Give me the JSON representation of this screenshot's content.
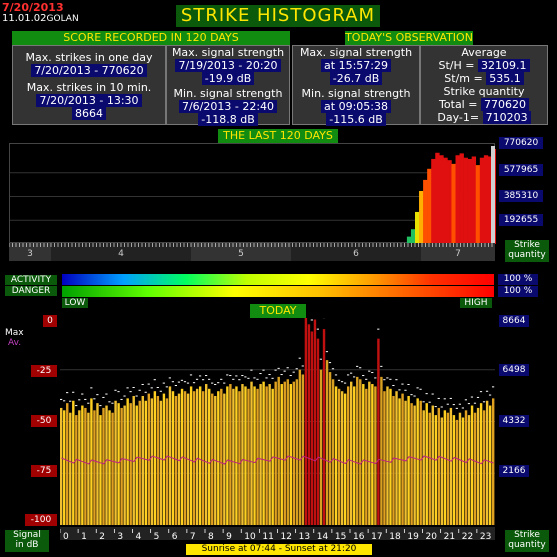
{
  "header": {
    "date": "7/20/2013",
    "time": "11.01.02",
    "location": "GOLAN",
    "title": "STRIKE HISTOGRAM"
  },
  "score": {
    "banner": "SCORE RECORDED IN 120 DAYS",
    "max_one_day_label": "Max. strikes in one day",
    "max_one_day_value": "7/20/2013 - 770620",
    "max_10min_label": "Max. strikes in 10 min.",
    "max_10min_date": "7/20/2013 - 13:30",
    "max_10min_value": "8664",
    "max_signal_label": "Max. signal strength",
    "max_signal_date": "7/19/2013 - 20:20",
    "max_signal_value": "-19.9 dB",
    "min_signal_label": "Min. signal strength",
    "min_signal_date": "7/6/2013 - 22:40",
    "min_signal_value": "-118.8 dB"
  },
  "today": {
    "banner": "TODAY'S OBSERVATION",
    "max_signal_label": "Max. signal strength",
    "max_signal_time": "at 15:57:29",
    "max_signal_value": "-26.7 dB",
    "min_signal_label": "Min. signal strength",
    "min_signal_time": "at 09:05:38",
    "min_signal_value": "-115.6 dB",
    "average_label": "Average",
    "sth_label": "St/H =",
    "sth_value": "32109.1",
    "stm_label": "St/m =",
    "stm_value": "535.1",
    "quantity_label": "Strike quantity",
    "total_label": "Total =",
    "total_value": "770620",
    "day1_label": "Day-1=",
    "day1_value": "710203"
  },
  "last120": {
    "banner": "THE LAST 120 DAYS",
    "y_labels": [
      "770620",
      "577965",
      "385310",
      "192655"
    ],
    "months": [
      "3",
      "4",
      "5",
      "6",
      "7"
    ],
    "side_label_1": "Strike",
    "side_label_2": "quantity",
    "chart_data": {
      "type": "bar",
      "x": "day index (last 120 days)",
      "ylim": [
        0,
        770620
      ],
      "values_last_days": [
        0,
        0,
        0,
        0,
        0,
        0,
        0,
        0,
        0,
        0,
        0,
        0,
        0,
        0,
        0,
        0,
        0,
        0,
        0,
        0,
        0,
        0,
        0,
        0,
        0,
        0,
        0,
        0,
        0,
        0,
        0,
        0,
        0,
        0,
        0,
        0,
        0,
        0,
        0,
        0,
        0,
        0,
        0,
        0,
        0,
        0,
        0,
        0,
        0,
        0,
        0,
        0,
        0,
        0,
        0,
        0,
        0,
        0,
        0,
        0,
        0,
        0,
        0,
        0,
        0,
        0,
        0,
        0,
        0,
        0,
        0,
        0,
        0,
        0,
        0,
        0,
        0,
        0,
        0,
        0,
        0,
        0,
        0,
        0,
        0,
        0,
        0,
        0,
        0,
        0,
        0,
        0,
        0,
        0,
        0,
        0,
        0,
        0,
        60000,
        120000,
        260000,
        430000,
        520000,
        610000,
        690000,
        740000,
        720000,
        700000,
        680000,
        650000,
        720000,
        735000,
        700000,
        690000,
        710000,
        640000,
        700000,
        720000,
        710203,
        770620
      ]
    }
  },
  "activity": {
    "label": "ACTIVITY",
    "value": "100 %"
  },
  "danger": {
    "label": "DANGER",
    "value": "100 %",
    "low": "LOW",
    "high": "HIGH"
  },
  "today_chart": {
    "banner": "TODAY",
    "max_label": "Max",
    "av_label": "Av.",
    "left_labels": [
      "0",
      "-25",
      "-50",
      "-75",
      "-100"
    ],
    "right_labels": [
      "8664",
      "6498",
      "4332",
      "2166"
    ],
    "hours": [
      "0",
      "1",
      "2",
      "3",
      "4",
      "5",
      "6",
      "7",
      "8",
      "9",
      "10",
      "11",
      "12",
      "13",
      "14",
      "15",
      "16",
      "17",
      "18",
      "19",
      "20",
      "21",
      "22",
      "23"
    ],
    "signal_label_1": "Signal",
    "signal_label_2": "in dB",
    "strike_label_1": "Strike",
    "strike_label_2": "quantity",
    "sun": "Sunrise at 07:44  -  Sunset at 21:20",
    "chart_data": {
      "type": "bar",
      "ylim": [
        0,
        8664
      ],
      "values": [
        4900,
        4800,
        5100,
        4700,
        5200,
        4600,
        4800,
        5000,
        4900,
        4700,
        5300,
        4800,
        5100,
        4600,
        4900,
        5000,
        4800,
        4700,
        5200,
        5100,
        4900,
        5000,
        5300,
        5100,
        5400,
        5000,
        5200,
        5400,
        5200,
        5500,
        5300,
        5600,
        5400,
        5200,
        5500,
        5300,
        5800,
        5600,
        5400,
        5500,
        5700,
        5600,
        5500,
        5800,
        5600,
        5700,
        5800,
        5600,
        5900,
        5700,
        5500,
        5400,
        5600,
        5700,
        5500,
        5800,
        5900,
        5700,
        5800,
        5600,
        5900,
        5800,
        5700,
        6000,
        5800,
        5700,
        5900,
        6000,
        5800,
        5900,
        5700,
        6000,
        6200,
        5900,
        6000,
        6100,
        5900,
        6000,
        6100,
        6500,
        6300,
        8664,
        8400,
        8100,
        8600,
        7800,
        6500,
        8200,
        6900,
        6400,
        6100,
        5800,
        5700,
        5600,
        5500,
        5800,
        6000,
        5800,
        6200,
        6100,
        5900,
        5700,
        6000,
        5900,
        5800,
        7800,
        6200,
        5600,
        5800,
        5700,
        5400,
        5600,
        5300,
        5500,
        5200,
        5400,
        5100,
        5000,
        5300,
        5200,
        4800,
        5100,
        4700,
        5000,
        4600,
        4900,
        4500,
        4800,
        4700,
        4900,
        4600,
        4400,
        4700,
        4500,
        4800,
        4600,
        5000,
        4700,
        4900,
        5100,
        4800,
        5200,
        5000,
        5300
      ]
    }
  }
}
